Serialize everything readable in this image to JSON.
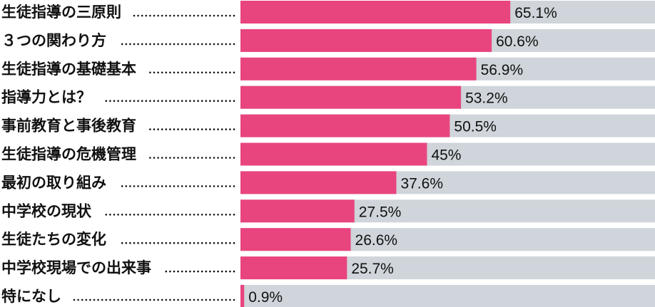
{
  "chart_data": {
    "type": "bar",
    "orientation": "horizontal",
    "categories": [
      "生徒指導の三原則",
      "３つの関わり方",
      "生徒指導の基礎基本",
      "指導力とは？",
      "事前教育と事後教育",
      "生徒指導の危機管理",
      "最初の取り組み",
      "中学校の現状",
      "生徒たちの変化",
      "中学校現場での出来事",
      "特になし"
    ],
    "values": [
      65.1,
      60.6,
      56.9,
      53.2,
      50.5,
      45,
      37.6,
      27.5,
      26.6,
      25.7,
      0.9
    ],
    "value_labels": [
      "65.1%",
      "60.6%",
      "56.9%",
      "53.2%",
      "50.5%",
      "45%",
      "37.6%",
      "27.5%",
      "26.6%",
      "25.7%",
      "0.9%"
    ],
    "xlim": [
      0,
      100
    ],
    "grid": false,
    "legend": "none",
    "colors": {
      "bar": "#e8457f",
      "track": "#cfd5da"
    }
  }
}
